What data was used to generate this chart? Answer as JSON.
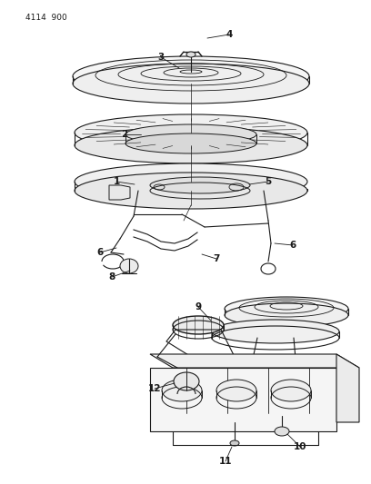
{
  "title_code": "4114 900",
  "bg": "#ffffff",
  "lc": "#1a1a1a",
  "fig_width": 4.08,
  "fig_height": 5.33,
  "dpi": 100
}
